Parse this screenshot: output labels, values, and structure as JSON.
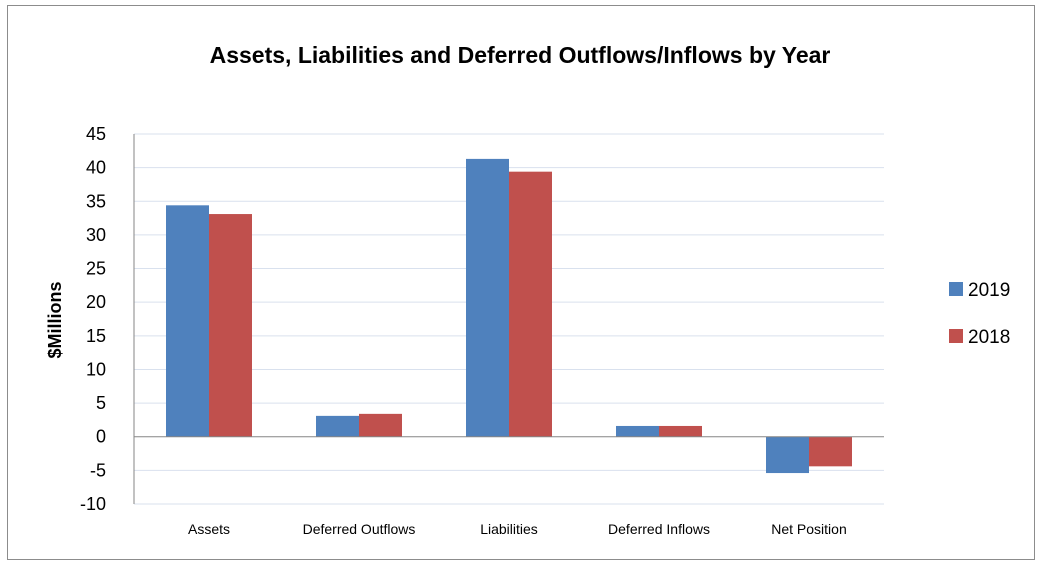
{
  "chart_data": {
    "type": "bar",
    "title": "Assets, Liabilities and Deferred Outflows/Inflows by Year",
    "ylabel": "$Millions",
    "xlabel": "",
    "categories": [
      "Assets",
      "Deferred Outflows",
      "Liabilities",
      "Deferred Inflows",
      "Net Position"
    ],
    "series": [
      {
        "name": "2019",
        "values": [
          34.4,
          3.1,
          41.3,
          1.6,
          -5.4
        ]
      },
      {
        "name": "2018",
        "values": [
          33.1,
          3.4,
          39.4,
          1.6,
          -4.4
        ]
      }
    ],
    "ylim": [
      -10,
      45
    ],
    "yticks": [
      "45",
      "40",
      "35",
      "30",
      "25",
      "20",
      "15",
      "10",
      "5",
      "0",
      "-5",
      "-10"
    ],
    "grid": true,
    "legend_position": "right"
  },
  "colors": {
    "series_2019": "#4f81bd",
    "series_2018": "#c0504d",
    "grid": "#d9e1ee",
    "axis": "#868686"
  }
}
